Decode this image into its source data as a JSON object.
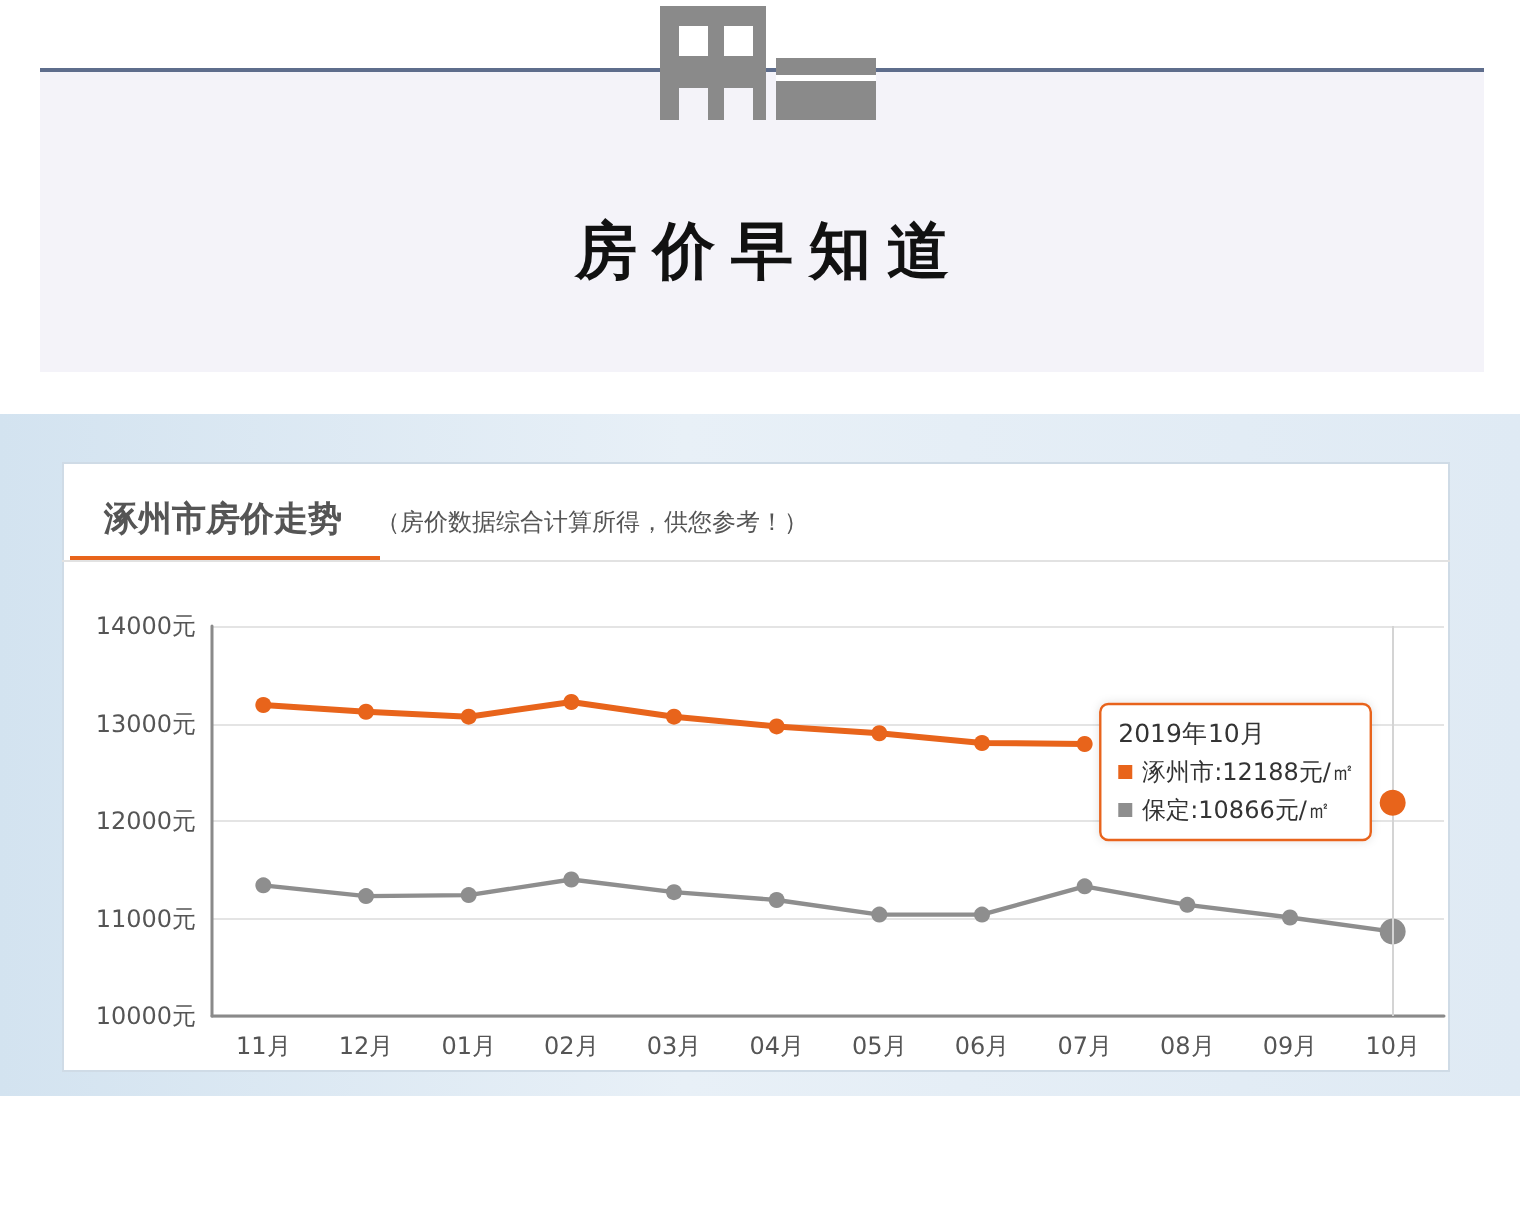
{
  "chart_data": {
    "type": "line",
    "title": "房价早知道",
    "subtitle": "涿州市房价走势",
    "annotations": [
      "（房价数据综合计算所得，供您参考！）",
      "12188元/㎡",
      "10866元/㎡"
    ],
    "categories": [
      "11月",
      "12月",
      "01月",
      "02月",
      "03月",
      "04月",
      "05月",
      "06月",
      "07月",
      "08月",
      "09月",
      "10月"
    ],
    "series": [
      {
        "name": "涿州市:",
        "color": "#e8641b",
        "values": [
          13190,
          13120,
          13070,
          13220,
          13070,
          12970,
          12900,
          12800,
          12790,
          null,
          null,
          12188
        ]
      },
      {
        "name": "保定:",
        "color": "#8e8e8e",
        "values": [
          11340,
          11230,
          11240,
          11400,
          11270,
          11190,
          11040,
          11040,
          11330,
          11140,
          11010,
          10866
        ]
      }
    ],
    "ylim": [
      10000,
      14000
    ],
    "yticks": [
      {
        "value": 10000,
        "label": "10000元"
      },
      {
        "value": 11000,
        "label": "11000元"
      },
      {
        "value": 12000,
        "label": "12000元"
      },
      {
        "value": 13000,
        "label": "13000元"
      },
      {
        "value": 14000,
        "label": "14000元"
      }
    ],
    "grid": "y",
    "legend": "right",
    "legend_title": "2019年10月",
    "marker": "circle",
    "ref_lines": [
      {
        "axis": "x",
        "value": "10月",
        "color": "#d4d4d4"
      }
    ]
  }
}
